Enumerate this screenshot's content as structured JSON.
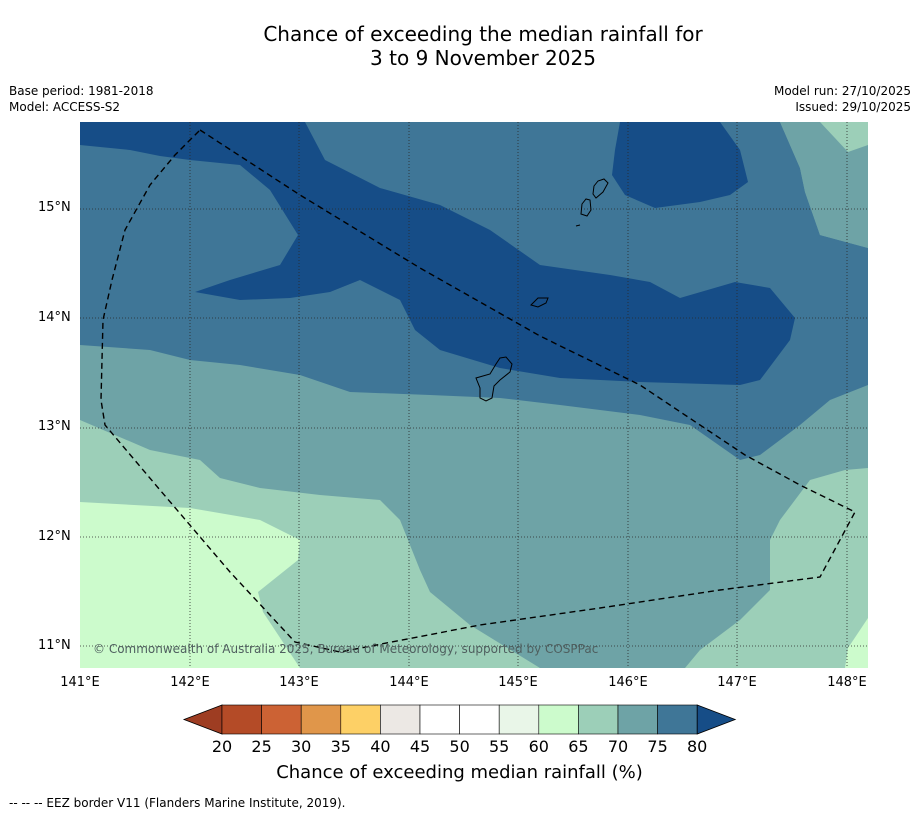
{
  "title": {
    "line1": "Chance of exceeding the median rainfall for",
    "line2": "3 to 9 November 2025"
  },
  "meta": {
    "base_period": "Base period: 1981-2018",
    "model": "Model: ACCESS-S2",
    "model_run": "Model run: 27/10/2025",
    "issued": "Issued: 29/10/2025"
  },
  "map": {
    "latitude_labels": [
      "15°N",
      "14°N",
      "13°N",
      "12°N",
      "11°N"
    ],
    "longitude_labels": [
      "141°E",
      "142°E",
      "143°E",
      "144°E",
      "145°E",
      "146°E",
      "147°E",
      "148°E"
    ],
    "copyright": "© Commonwealth of Australia 2025, Bureau of Meteorology, supported by COSPPac"
  },
  "colorbar": {
    "ticks": [
      "20",
      "25",
      "30",
      "35",
      "40",
      "45",
      "50",
      "55",
      "60",
      "65",
      "70",
      "75",
      "80"
    ],
    "colors": [
      "#9e3d22",
      "#b44b27",
      "#cc6234",
      "#e0964a",
      "#fdd066",
      "#ece8e4",
      "#ffffff",
      "#ffffff",
      "#e9f6e8",
      "#ccfbcc",
      "#9ccfb8",
      "#6ea3a6",
      "#3f7697",
      "#164d87"
    ],
    "title": "Chance of exceeding median rainfall (%)"
  },
  "footnote": "--  --  -- EEZ border V11 (Flanders Marine Institute, 2019)."
}
